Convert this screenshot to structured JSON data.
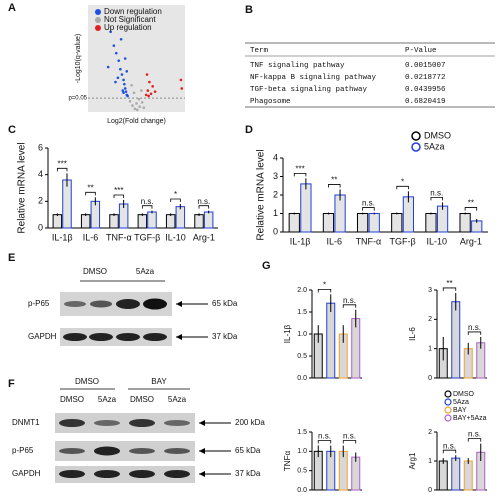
{
  "panel_labels": [
    "A",
    "B",
    "C",
    "D",
    "E",
    "F",
    "G"
  ],
  "chart_data": [
    {
      "type": "scatter",
      "y_label": "-Log10(q-value)",
      "x_label": "Log2(Fold change)",
      "threshold": {
        "value": 1.3,
        "label": "p=0.05"
      },
      "xlim": [
        -6,
        6
      ],
      "ylim": [
        0,
        10
      ],
      "series": [
        {
          "name": "Down regulation",
          "color": "#1f4fe0",
          "x": [
            -3.2,
            -2.8,
            -2.5,
            -2.2,
            -2.0,
            -1.8,
            -1.6,
            -1.5,
            -1.4,
            -1.3,
            -1.2,
            -1.1,
            -2.6,
            -1.9,
            -1.7,
            -3.5,
            -2.3,
            -1.4,
            -1.2,
            -1.6
          ],
          "y": [
            7.5,
            6.2,
            5.5,
            4.8,
            4.0,
            3.5,
            3.0,
            2.6,
            2.2,
            1.9,
            1.6,
            1.5,
            2.8,
            6.8,
            2.0,
            4.2,
            3.2,
            5.0,
            3.8,
            1.8
          ]
        },
        {
          "name": "Not Significant",
          "color": "#aaaaaa",
          "x": [
            -0.8,
            -0.5,
            -0.2,
            0.1,
            0.4,
            0.7,
            -0.6,
            0.3,
            0.9,
            -0.3,
            0.0,
            0.6
          ],
          "y": [
            1.0,
            0.6,
            0.3,
            0.2,
            0.5,
            0.9,
            2.5,
            1.2,
            0.4,
            1.8,
            0.8,
            2.0
          ]
        },
        {
          "name": "Up regulation",
          "color": "#e02020",
          "x": [
            1.2,
            1.4,
            1.6,
            1.8,
            2.0,
            2.3,
            1.3,
            1.5,
            5.5,
            5.6
          ],
          "y": [
            1.6,
            2.0,
            2.8,
            1.7,
            2.4,
            1.9,
            3.5,
            1.5,
            3.0,
            2.2
          ]
        }
      ]
    },
    {
      "type": "bar",
      "y_label": "Relative mRNA level",
      "categories": [
        "IL-1β",
        "IL-6",
        "TNF-α",
        "TGF-β",
        "IL-10",
        "Arg-1"
      ],
      "series": [
        {
          "name": "DMSO",
          "color": "#000000",
          "values": [
            1.0,
            1.0,
            1.0,
            1.0,
            1.0,
            1.0
          ],
          "errors": [
            0.1,
            0.1,
            0.1,
            0.1,
            0.1,
            0.1
          ]
        },
        {
          "name": "5Aza",
          "color": "#1f3fd6",
          "values": [
            3.6,
            2.0,
            1.8,
            1.2,
            1.6,
            1.2
          ],
          "errors": [
            0.5,
            0.3,
            0.3,
            0.1,
            0.2,
            0.1
          ]
        }
      ],
      "significance": [
        "***",
        "**",
        "***",
        "n.s.",
        "*",
        "n.s."
      ],
      "ylim": [
        0,
        6
      ],
      "yticks": [
        0,
        2,
        4,
        6
      ]
    },
    {
      "type": "bar",
      "y_label": "Relative mRNA level",
      "categories": [
        "IL-1β",
        "IL-6",
        "TNF-α",
        "TGF-β",
        "IL-10",
        "Arg-1"
      ],
      "series": [
        {
          "name": "DMSO",
          "color": "#000000",
          "values": [
            1.0,
            1.0,
            1.0,
            1.0,
            1.0,
            1.0
          ],
          "errors": [
            0.05,
            0.05,
            0.05,
            0.05,
            0.05,
            0.05
          ]
        },
        {
          "name": "5Aza",
          "color": "#1f3fd6",
          "values": [
            2.6,
            2.0,
            1.0,
            1.9,
            1.4,
            0.6
          ],
          "errors": [
            0.3,
            0.3,
            0.05,
            0.3,
            0.2,
            0.1
          ]
        }
      ],
      "significance": [
        "***",
        "**",
        "n.s.",
        "*",
        "n.s.",
        "**"
      ],
      "ylim": [
        0,
        4
      ],
      "yticks": [
        0,
        1,
        2,
        3,
        4
      ],
      "legend": true
    },
    {
      "type": "bar4",
      "y_label": "IL-1β",
      "values": [
        1.0,
        1.7,
        1.0,
        1.35
      ],
      "errors": [
        0.2,
        0.2,
        0.2,
        0.2
      ],
      "significance": [
        "*",
        "n.s."
      ],
      "ylim": [
        0,
        2
      ],
      "yticks": [
        {
          "value": 0,
          "label": "0.0"
        },
        {
          "value": 0.5,
          "label": "0.5"
        },
        {
          "value": 1,
          "label": "1.0"
        },
        {
          "value": 1.5,
          "label": "1.5"
        },
        {
          "value": 2,
          "label": "2.0"
        }
      ]
    },
    {
      "type": "bar4",
      "y_label": "IL-6",
      "values": [
        1.0,
        2.6,
        1.0,
        1.2
      ],
      "errors": [
        0.4,
        0.3,
        0.2,
        0.2
      ],
      "significance": [
        "**",
        "n.s."
      ],
      "ylim": [
        0,
        3
      ],
      "yticks": [
        0,
        1,
        2,
        3
      ]
    },
    {
      "type": "bar4",
      "y_label": "TNFα",
      "values": [
        1.0,
        1.0,
        1.0,
        0.85
      ],
      "errors": [
        0.15,
        0.15,
        0.15,
        0.12
      ],
      "significance": [
        "n.s.",
        "n.s."
      ],
      "ylim": [
        0,
        1.5
      ],
      "yticks": [
        {
          "value": 0,
          "label": "0.0"
        },
        {
          "value": 0.5,
          "label": "0.5"
        },
        {
          "value": 1,
          "label": "1.0"
        },
        {
          "value": 1.5,
          "label": "1.5"
        }
      ]
    },
    {
      "type": "bar4",
      "y_label": "Arg1",
      "values": [
        1.0,
        1.1,
        1.0,
        1.3
      ],
      "errors": [
        0.1,
        0.1,
        0.1,
        0.3
      ],
      "significance": [
        "n.s.",
        "n.s."
      ],
      "ylim": [
        0,
        2
      ],
      "yticks": [
        0,
        1,
        2
      ]
    }
  ],
  "legend_g": {
    "names": [
      "DMSO",
      "5Aza",
      "BAY",
      "BAY+5Aza"
    ],
    "colors": [
      "#000000",
      "#1f3fd6",
      "#f0a030",
      "#b05cc8"
    ]
  },
  "table": {
    "header": [
      "Term",
      "P-Value"
    ],
    "rows": [
      [
        "TNF signaling pathway",
        "0.0015007"
      ],
      [
        "NF-kappa B signaling pathway",
        "0.0218772"
      ],
      [
        "TGF-beta signaling pathway",
        "0.0439956"
      ],
      [
        "Phagosome",
        "0.6820419"
      ]
    ]
  },
  "blot_e": {
    "columns": [
      "DMSO",
      "5Aza"
    ],
    "rows": [
      {
        "label": "p-P65",
        "size": "65 kDa"
      },
      {
        "label": "GAPDH",
        "size": "37 kDa"
      }
    ]
  },
  "blot_f": {
    "groups": [
      "DMSO",
      "BAY"
    ],
    "columns": [
      "DMSO",
      "5Aza",
      "DMSO",
      "5Aza"
    ],
    "rows": [
      {
        "label": "DNMT1",
        "size": "200 kDa"
      },
      {
        "label": "p-P65",
        "size": "65 kDa"
      },
      {
        "label": "GAPDH",
        "size": "37 kDa"
      }
    ]
  }
}
